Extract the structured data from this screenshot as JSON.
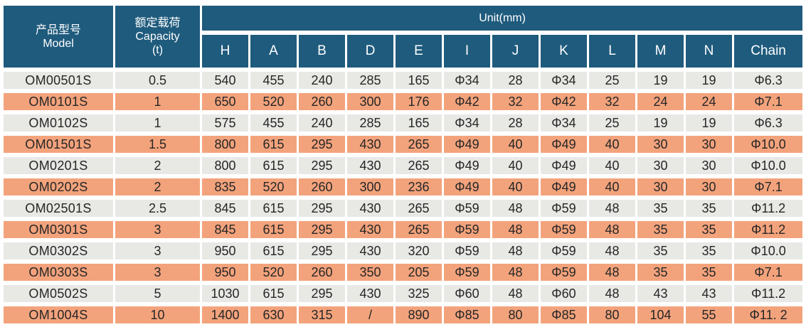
{
  "table": {
    "header": {
      "model_cn": "产品型号",
      "model_en": "Model",
      "capacity_cn": "额定载荷",
      "capacity_en": "Capacity",
      "capacity_unit": "(t)",
      "unit_label": "Unit(mm)",
      "dim_columns": [
        "H",
        "A",
        "B",
        "D",
        "E",
        "I",
        "J",
        "K",
        "L",
        "M",
        "N",
        "Chain"
      ]
    },
    "rows": [
      {
        "model": "OM00501S",
        "capacity": "0.5",
        "dims": [
          "540",
          "455",
          "240",
          "285",
          "165",
          "Φ34",
          "28",
          "Φ34",
          "25",
          "19",
          "19",
          "Φ6.3"
        ]
      },
      {
        "model": "OM0101S",
        "capacity": "1",
        "dims": [
          "650",
          "520",
          "260",
          "300",
          "176",
          "Φ42",
          "32",
          "Φ42",
          "32",
          "24",
          "24",
          "Φ7.1"
        ]
      },
      {
        "model": "OM0102S",
        "capacity": "1",
        "dims": [
          "575",
          "455",
          "240",
          "285",
          "165",
          "Φ34",
          "28",
          "Φ34",
          "25",
          "19",
          "19",
          "Φ6.3"
        ]
      },
      {
        "model": "OM01501S",
        "capacity": "1.5",
        "dims": [
          "800",
          "615",
          "295",
          "430",
          "265",
          "Φ49",
          "40",
          "Φ49",
          "40",
          "30",
          "30",
          "Φ10.0"
        ]
      },
      {
        "model": "OM0201S",
        "capacity": "2",
        "dims": [
          "800",
          "615",
          "295",
          "430",
          "265",
          "Φ49",
          "40",
          "Φ49",
          "40",
          "30",
          "30",
          "Φ10.0"
        ]
      },
      {
        "model": "OM0202S",
        "capacity": "2",
        "dims": [
          "835",
          "520",
          "260",
          "300",
          "236",
          "Φ49",
          "40",
          "Φ49",
          "40",
          "30",
          "30",
          "Φ7.1"
        ]
      },
      {
        "model": "OM02501S",
        "capacity": "2.5",
        "dims": [
          "845",
          "615",
          "295",
          "430",
          "265",
          "Φ59",
          "48",
          "Φ59",
          "48",
          "35",
          "35",
          "Φ11.2"
        ]
      },
      {
        "model": "OM0301S",
        "capacity": "3",
        "dims": [
          "845",
          "615",
          "295",
          "430",
          "265",
          "Φ59",
          "48",
          "Φ59",
          "48",
          "35",
          "35",
          "Φ11.2"
        ]
      },
      {
        "model": "OM0302S",
        "capacity": "3",
        "dims": [
          "950",
          "615",
          "295",
          "430",
          "320",
          "Φ59",
          "48",
          "Φ59",
          "48",
          "35",
          "35",
          "Φ10.0"
        ]
      },
      {
        "model": "OM0303S",
        "capacity": "3",
        "dims": [
          "950",
          "520",
          "260",
          "350",
          "205",
          "Φ59",
          "48",
          "Φ59",
          "48",
          "35",
          "35",
          "Φ7.1"
        ]
      },
      {
        "model": "OM0502S",
        "capacity": "5",
        "dims": [
          "1030",
          "615",
          "295",
          "430",
          "325",
          "Φ60",
          "48",
          "Φ60",
          "48",
          "43",
          "43",
          "Φ11.2"
        ]
      },
      {
        "model": "OM1004S",
        "capacity": "10",
        "dims": [
          "1400",
          "630",
          "315",
          "/",
          "890",
          "Φ85",
          "80",
          "Φ85",
          "80",
          "104",
          "55",
          "Φ11. 2"
        ]
      }
    ],
    "colors": {
      "header_bg": "#1F5B7D",
      "header_text": "#FFFFFF",
      "row_odd_bg": "#E8E8E5",
      "row_even_bg": "#F3A37C",
      "body_text": "#262626"
    }
  }
}
